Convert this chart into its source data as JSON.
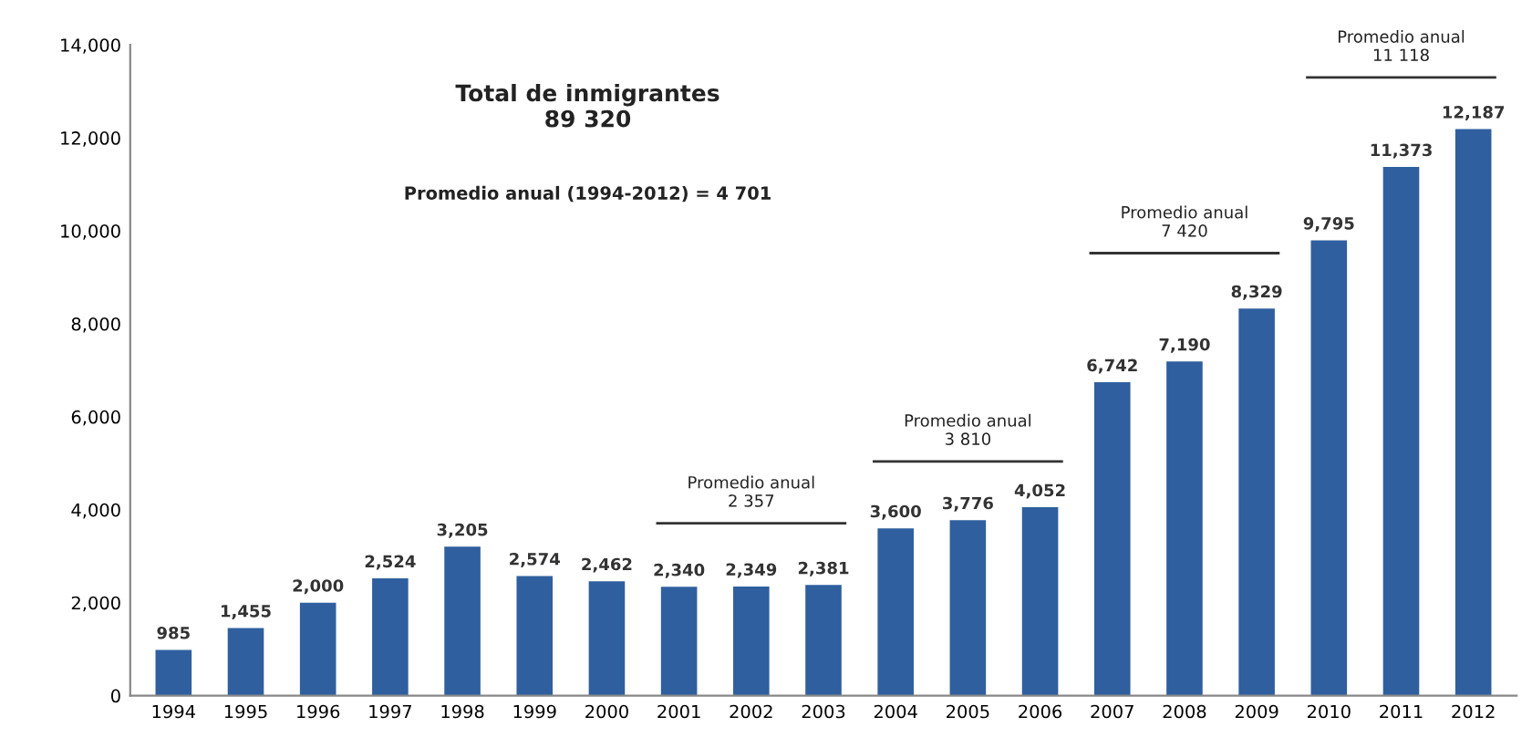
{
  "chart_data": {
    "type": "bar",
    "title": "Total de inmigrantes\n89 320",
    "categories": [
      "1994",
      "1995",
      "1996",
      "1997",
      "1998",
      "1999",
      "2000",
      "2001",
      "2002",
      "2003",
      "2004",
      "2005",
      "2006",
      "2007",
      "2008",
      "2009",
      "2010",
      "2011",
      "2012"
    ],
    "values": [
      985,
      1455,
      2000,
      2524,
      3205,
      2574,
      2462,
      2340,
      2349,
      2381,
      3600,
      3776,
      4052,
      6742,
      7190,
      8329,
      9795,
      11373,
      12187
    ],
    "value_labels": [
      "985",
      "1,455",
      "2,000",
      "2,524",
      "3,205",
      "2,574",
      "2,462",
      "2,340",
      "2,349",
      "2,381",
      "3,600",
      "3,776",
      "4,052",
      "6,742",
      "7,190",
      "8,329",
      "9,795",
      "11,373",
      "12,187"
    ],
    "color": "#2f5f9e",
    "ylim": [
      0,
      14000
    ],
    "yticks": [
      {
        "value": 0,
        "label": "0"
      },
      {
        "value": 2000,
        "label": "2,000"
      },
      {
        "value": 4000,
        "label": "4,000"
      },
      {
        "value": 6000,
        "label": "6,000"
      },
      {
        "value": 8000,
        "label": "8,000"
      },
      {
        "value": 10000,
        "label": "10,000"
      },
      {
        "value": 12000,
        "label": "12,000"
      },
      {
        "value": 14000,
        "label": "14,000"
      }
    ],
    "grid": false,
    "legend": false,
    "annotations": [
      "Promedio anual (1994-2012) = 4 701",
      "Promedio anual\n2 357",
      "Promedio anual\n3 810",
      "Promedio anual\n7 420",
      "Promedio anual\n11 118"
    ]
  }
}
